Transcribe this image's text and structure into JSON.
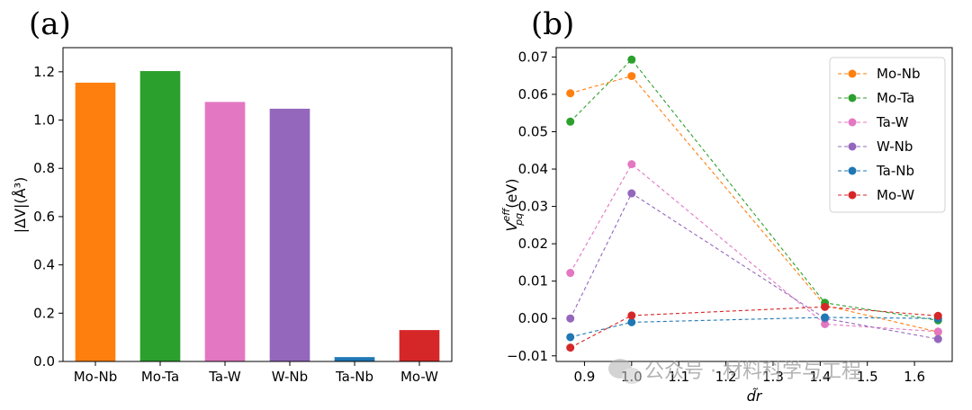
{
  "panel_a_label": "(a)",
  "panel_b_label": "(b)",
  "watermark": "公众号 · 材料科学与工程",
  "chart_data": [
    {
      "type": "bar",
      "panel": "(a)",
      "categories": [
        "Mo-Nb",
        "Mo-Ta",
        "Ta-W",
        "W-Nb",
        "Ta-Nb",
        "Mo-W"
      ],
      "values": [
        1.155,
        1.203,
        1.075,
        1.047,
        0.018,
        0.13
      ],
      "colors": [
        "#ff7f0e",
        "#2ca02c",
        "#e377c2",
        "#9467bd",
        "#1f77b4",
        "#d62728"
      ],
      "xlabel": "",
      "ylabel": "|ΔV|(Å³)",
      "ylim": [
        0,
        1.3
      ],
      "yticks": [
        0.0,
        0.2,
        0.4,
        0.6,
        0.8,
        1.0,
        1.2
      ],
      "ytick_labels": [
        "0.0",
        "0.2",
        "0.4",
        "0.6",
        "0.8",
        "1.0",
        "1.2"
      ],
      "grid": false
    },
    {
      "type": "line",
      "panel": "(b)",
      "x": [
        0.87,
        1.0,
        1.41,
        1.65
      ],
      "series": [
        {
          "name": "Mo-Nb",
          "color": "#ff7f0e",
          "values": [
            0.0603,
            0.0649,
            0.0035,
            -0.0036
          ]
        },
        {
          "name": "Mo-Ta",
          "color": "#2ca02c",
          "values": [
            0.0527,
            0.0693,
            0.0042,
            -0.0005
          ]
        },
        {
          "name": "Ta-W",
          "color": "#e377c2",
          "values": [
            0.0122,
            0.0413,
            -0.0015,
            -0.0035
          ]
        },
        {
          "name": "W-Nb",
          "color": "#9467bd",
          "values": [
            0.0,
            0.0335,
            0.0,
            -0.0055
          ]
        },
        {
          "name": "Ta-Nb",
          "color": "#1f77b4",
          "values": [
            -0.005,
            -0.001,
            0.0003,
            0.0
          ]
        },
        {
          "name": "Mo-W",
          "color": "#d62728",
          "values": [
            -0.0078,
            0.0008,
            0.0031,
            0.0007
          ]
        }
      ],
      "xlabel": "d̃r",
      "ylabel_main": "V",
      "ylabel_sup": "eff",
      "ylabel_sub": "pq",
      "ylabel_unit": " (eV)",
      "xlim": [
        0.84,
        1.68
      ],
      "ylim": [
        -0.0115,
        0.0725
      ],
      "xticks": [
        0.9,
        1.0,
        1.1,
        1.2,
        1.3,
        1.4,
        1.5,
        1.6
      ],
      "xtick_labels": [
        "0.9",
        "1.0",
        "1.1",
        "1.2",
        "1.3",
        "1.4",
        "1.5",
        "1.6"
      ],
      "yticks": [
        -0.01,
        0.0,
        0.01,
        0.02,
        0.03,
        0.04,
        0.05,
        0.06,
        0.07
      ],
      "ytick_labels": [
        "−0.01",
        "0.00",
        "0.01",
        "0.02",
        "0.03",
        "0.04",
        "0.05",
        "0.06",
        "0.07"
      ],
      "legend_position": "top-right",
      "grid": false
    }
  ]
}
